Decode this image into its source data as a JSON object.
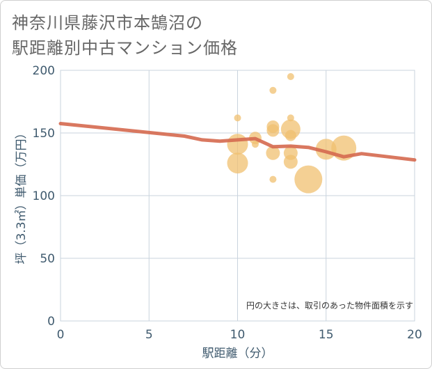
{
  "title_line1": "神奈川県藤沢市本鵠沼の",
  "title_line2": "駅距離別中古マンション価格",
  "chart_data": {
    "type": "scatter",
    "title": "神奈川県藤沢市本鵠沼の駅距離別中古マンション価格",
    "xlabel": "駅距離（分）",
    "ylabel": "坪（3.3㎡）単価（万円）",
    "xlim": [
      0,
      20
    ],
    "ylim": [
      0,
      200
    ],
    "xticks": [
      0,
      5,
      10,
      15,
      20
    ],
    "yticks": [
      0,
      50,
      100,
      150,
      200
    ],
    "grid": true,
    "annotation": "円の大きさは、取引のあった物件面積を示す",
    "colors": {
      "bubble": "#f0c070",
      "trend": "#d5694f",
      "grid": "#c9d3de",
      "axis_text": "#3f5a6e"
    },
    "scatter": [
      {
        "x": 10,
        "y": 162,
        "size": 5
      },
      {
        "x": 10,
        "y": 141,
        "size": 15
      },
      {
        "x": 10,
        "y": 126,
        "size": 15
      },
      {
        "x": 11,
        "y": 146,
        "size": 9
      },
      {
        "x": 11,
        "y": 141,
        "size": 5
      },
      {
        "x": 12,
        "y": 184,
        "size": 5
      },
      {
        "x": 12,
        "y": 155,
        "size": 9
      },
      {
        "x": 12,
        "y": 152,
        "size": 9
      },
      {
        "x": 12,
        "y": 134,
        "size": 10
      },
      {
        "x": 12,
        "y": 113,
        "size": 5
      },
      {
        "x": 13,
        "y": 195,
        "size": 5
      },
      {
        "x": 13,
        "y": 162,
        "size": 5
      },
      {
        "x": 13,
        "y": 153,
        "size": 14
      },
      {
        "x": 13,
        "y": 148,
        "size": 8
      },
      {
        "x": 13,
        "y": 134,
        "size": 10
      },
      {
        "x": 13,
        "y": 127,
        "size": 10
      },
      {
        "x": 14,
        "y": 113,
        "size": 20
      },
      {
        "x": 15,
        "y": 137,
        "size": 15
      },
      {
        "x": 16,
        "y": 138,
        "size": 18
      }
    ],
    "trend_line": {
      "x": [
        0,
        7,
        8,
        9,
        10,
        11,
        12,
        13,
        14,
        15,
        16,
        17,
        20
      ],
      "y": [
        157.5,
        147.5,
        144.5,
        143.5,
        144.5,
        145.5,
        139,
        139.5,
        138.5,
        135,
        131,
        133.5,
        128.5
      ]
    }
  }
}
